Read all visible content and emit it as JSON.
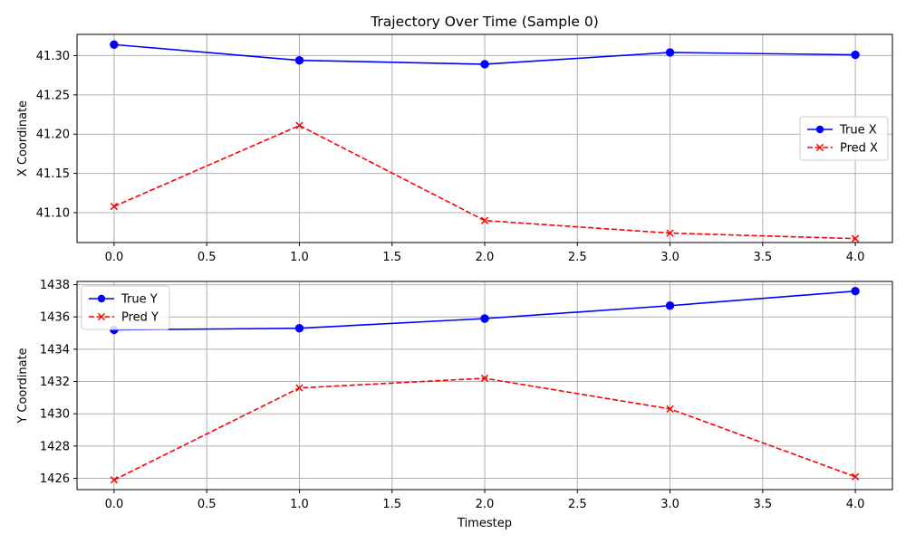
{
  "colors": {
    "true_series": "#0000ff",
    "pred_series": "#ff0000",
    "grid": "#b0b0b0",
    "axes": "#000000",
    "legend_border": "#cccccc"
  },
  "chart_data": [
    {
      "type": "line",
      "title": "Trajectory Over Time (Sample 0)",
      "xlabel": "",
      "ylabel": "X Coordinate",
      "xlim": [
        -0.2,
        4.2
      ],
      "ylim": [
        41.062,
        41.327
      ],
      "x_ticks": [
        0.0,
        0.5,
        1.0,
        1.5,
        2.0,
        2.5,
        3.0,
        3.5,
        4.0
      ],
      "x_tick_labels": [
        "0.0",
        "0.5",
        "1.0",
        "1.5",
        "2.0",
        "2.5",
        "3.0",
        "3.5",
        "4.0"
      ],
      "y_ticks": [
        41.1,
        41.15,
        41.2,
        41.25,
        41.3
      ],
      "y_tick_labels": [
        "41.10",
        "41.15",
        "41.20",
        "41.25",
        "41.30"
      ],
      "grid": true,
      "legend_position": "center-right",
      "x": [
        0,
        1,
        2,
        3,
        4
      ],
      "series": [
        {
          "name": "True X",
          "values": [
            41.314,
            41.294,
            41.289,
            41.304,
            41.301
          ],
          "color": "#0000ff",
          "linestyle": "solid",
          "marker": "circle"
        },
        {
          "name": "Pred X",
          "values": [
            41.108,
            41.211,
            41.09,
            41.074,
            41.067
          ],
          "color": "#ff0000",
          "linestyle": "dashed",
          "marker": "x"
        }
      ]
    },
    {
      "type": "line",
      "title": "",
      "xlabel": "Timestep",
      "ylabel": "Y Coordinate",
      "xlim": [
        -0.2,
        4.2
      ],
      "ylim": [
        1425.3,
        1438.2
      ],
      "x_ticks": [
        0.0,
        0.5,
        1.0,
        1.5,
        2.0,
        2.5,
        3.0,
        3.5,
        4.0
      ],
      "x_tick_labels": [
        "0.0",
        "0.5",
        "1.0",
        "1.5",
        "2.0",
        "2.5",
        "3.0",
        "3.5",
        "4.0"
      ],
      "y_ticks": [
        1426,
        1428,
        1430,
        1432,
        1434,
        1436,
        1438
      ],
      "y_tick_labels": [
        "1426",
        "1428",
        "1430",
        "1432",
        "1434",
        "1436",
        "1438"
      ],
      "grid": true,
      "legend_position": "upper-left",
      "x": [
        0,
        1,
        2,
        3,
        4
      ],
      "series": [
        {
          "name": "True Y",
          "values": [
            1435.2,
            1435.3,
            1435.9,
            1436.7,
            1437.6
          ],
          "color": "#0000ff",
          "linestyle": "solid",
          "marker": "circle"
        },
        {
          "name": "Pred Y",
          "values": [
            1425.9,
            1431.6,
            1432.2,
            1430.3,
            1426.1
          ],
          "color": "#ff0000",
          "linestyle": "dashed",
          "marker": "x"
        }
      ]
    }
  ]
}
